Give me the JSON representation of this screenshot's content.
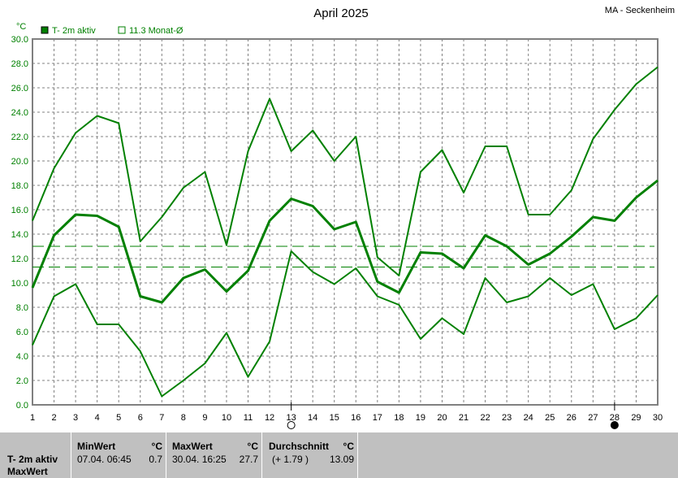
{
  "chart_data": {
    "type": "line",
    "title": "April 2025",
    "station": "MA - Seckenheim",
    "ylabel": "°C",
    "ylim": [
      0,
      30
    ],
    "yticks": [
      "0.0",
      "2.0",
      "4.0",
      "6.0",
      "8.0",
      "10.0",
      "12.0",
      "14.0",
      "16.0",
      "18.0",
      "20.0",
      "22.0",
      "24.0",
      "26.0",
      "28.0",
      "30.0"
    ],
    "x": [
      1,
      2,
      3,
      4,
      5,
      6,
      7,
      8,
      9,
      10,
      11,
      12,
      13,
      14,
      15,
      16,
      17,
      18,
      19,
      20,
      21,
      22,
      23,
      24,
      25,
      26,
      27,
      28,
      29,
      30
    ],
    "grid": true,
    "legend": [
      {
        "label": "T- 2m aktiv",
        "marker": "filled-square"
      },
      {
        "label": "11.3 Monat-Ø",
        "marker": "empty-square"
      }
    ],
    "series": [
      {
        "role": "max",
        "values": [
          15.1,
          19.4,
          22.3,
          23.7,
          23.1,
          13.4,
          15.4,
          17.8,
          19.1,
          13.1,
          20.8,
          25.1,
          20.8,
          22.5,
          20.0,
          22.0,
          12.1,
          10.6,
          19.1,
          20.9,
          17.4,
          21.2,
          21.2,
          15.6,
          15.6,
          17.6,
          21.8,
          24.2,
          26.3,
          27.7
        ]
      },
      {
        "role": "mean",
        "values": [
          9.6,
          13.9,
          15.6,
          15.5,
          14.6,
          8.9,
          8.4,
          10.4,
          11.1,
          9.3,
          11.0,
          15.1,
          16.9,
          16.3,
          14.4,
          15.0,
          10.1,
          9.2,
          12.5,
          12.4,
          11.2,
          13.9,
          13.0,
          11.5,
          12.4,
          13.8,
          15.4,
          15.1,
          17.0,
          18.4
        ]
      },
      {
        "role": "min",
        "values": [
          4.9,
          8.9,
          9.9,
          6.6,
          6.6,
          4.4,
          0.7,
          2.0,
          3.4,
          5.9,
          2.3,
          5.2,
          12.6,
          10.9,
          9.9,
          11.2,
          8.9,
          8.2,
          5.4,
          7.1,
          5.8,
          10.4,
          8.4,
          8.9,
          10.4,
          9.0,
          9.9,
          6.2,
          7.1,
          9.0
        ]
      }
    ],
    "reference_lines": [
      13.0,
      11.3
    ],
    "moon_phases": [
      {
        "day": 13,
        "phase": "full-moon"
      },
      {
        "day": 28,
        "phase": "new-moon"
      }
    ],
    "colors": {
      "line": "#008000",
      "grid": "#808080",
      "axis": "#808080",
      "panel": "#c0c0c0"
    }
  },
  "summary": {
    "label1": "T- 2m aktiv",
    "label2": "MaxWert",
    "min": {
      "header": "MinWert",
      "unit": "°C",
      "date": "07.04.  06:45",
      "value": "0.7"
    },
    "max": {
      "header": "MaxWert",
      "unit": "°C",
      "date": "30.04.  16:25",
      "value": "27.7"
    },
    "avg": {
      "header": "Durchschnitt",
      "unit": "°C",
      "deviation": "(+ 1.79 )",
      "value": "13.09"
    }
  }
}
